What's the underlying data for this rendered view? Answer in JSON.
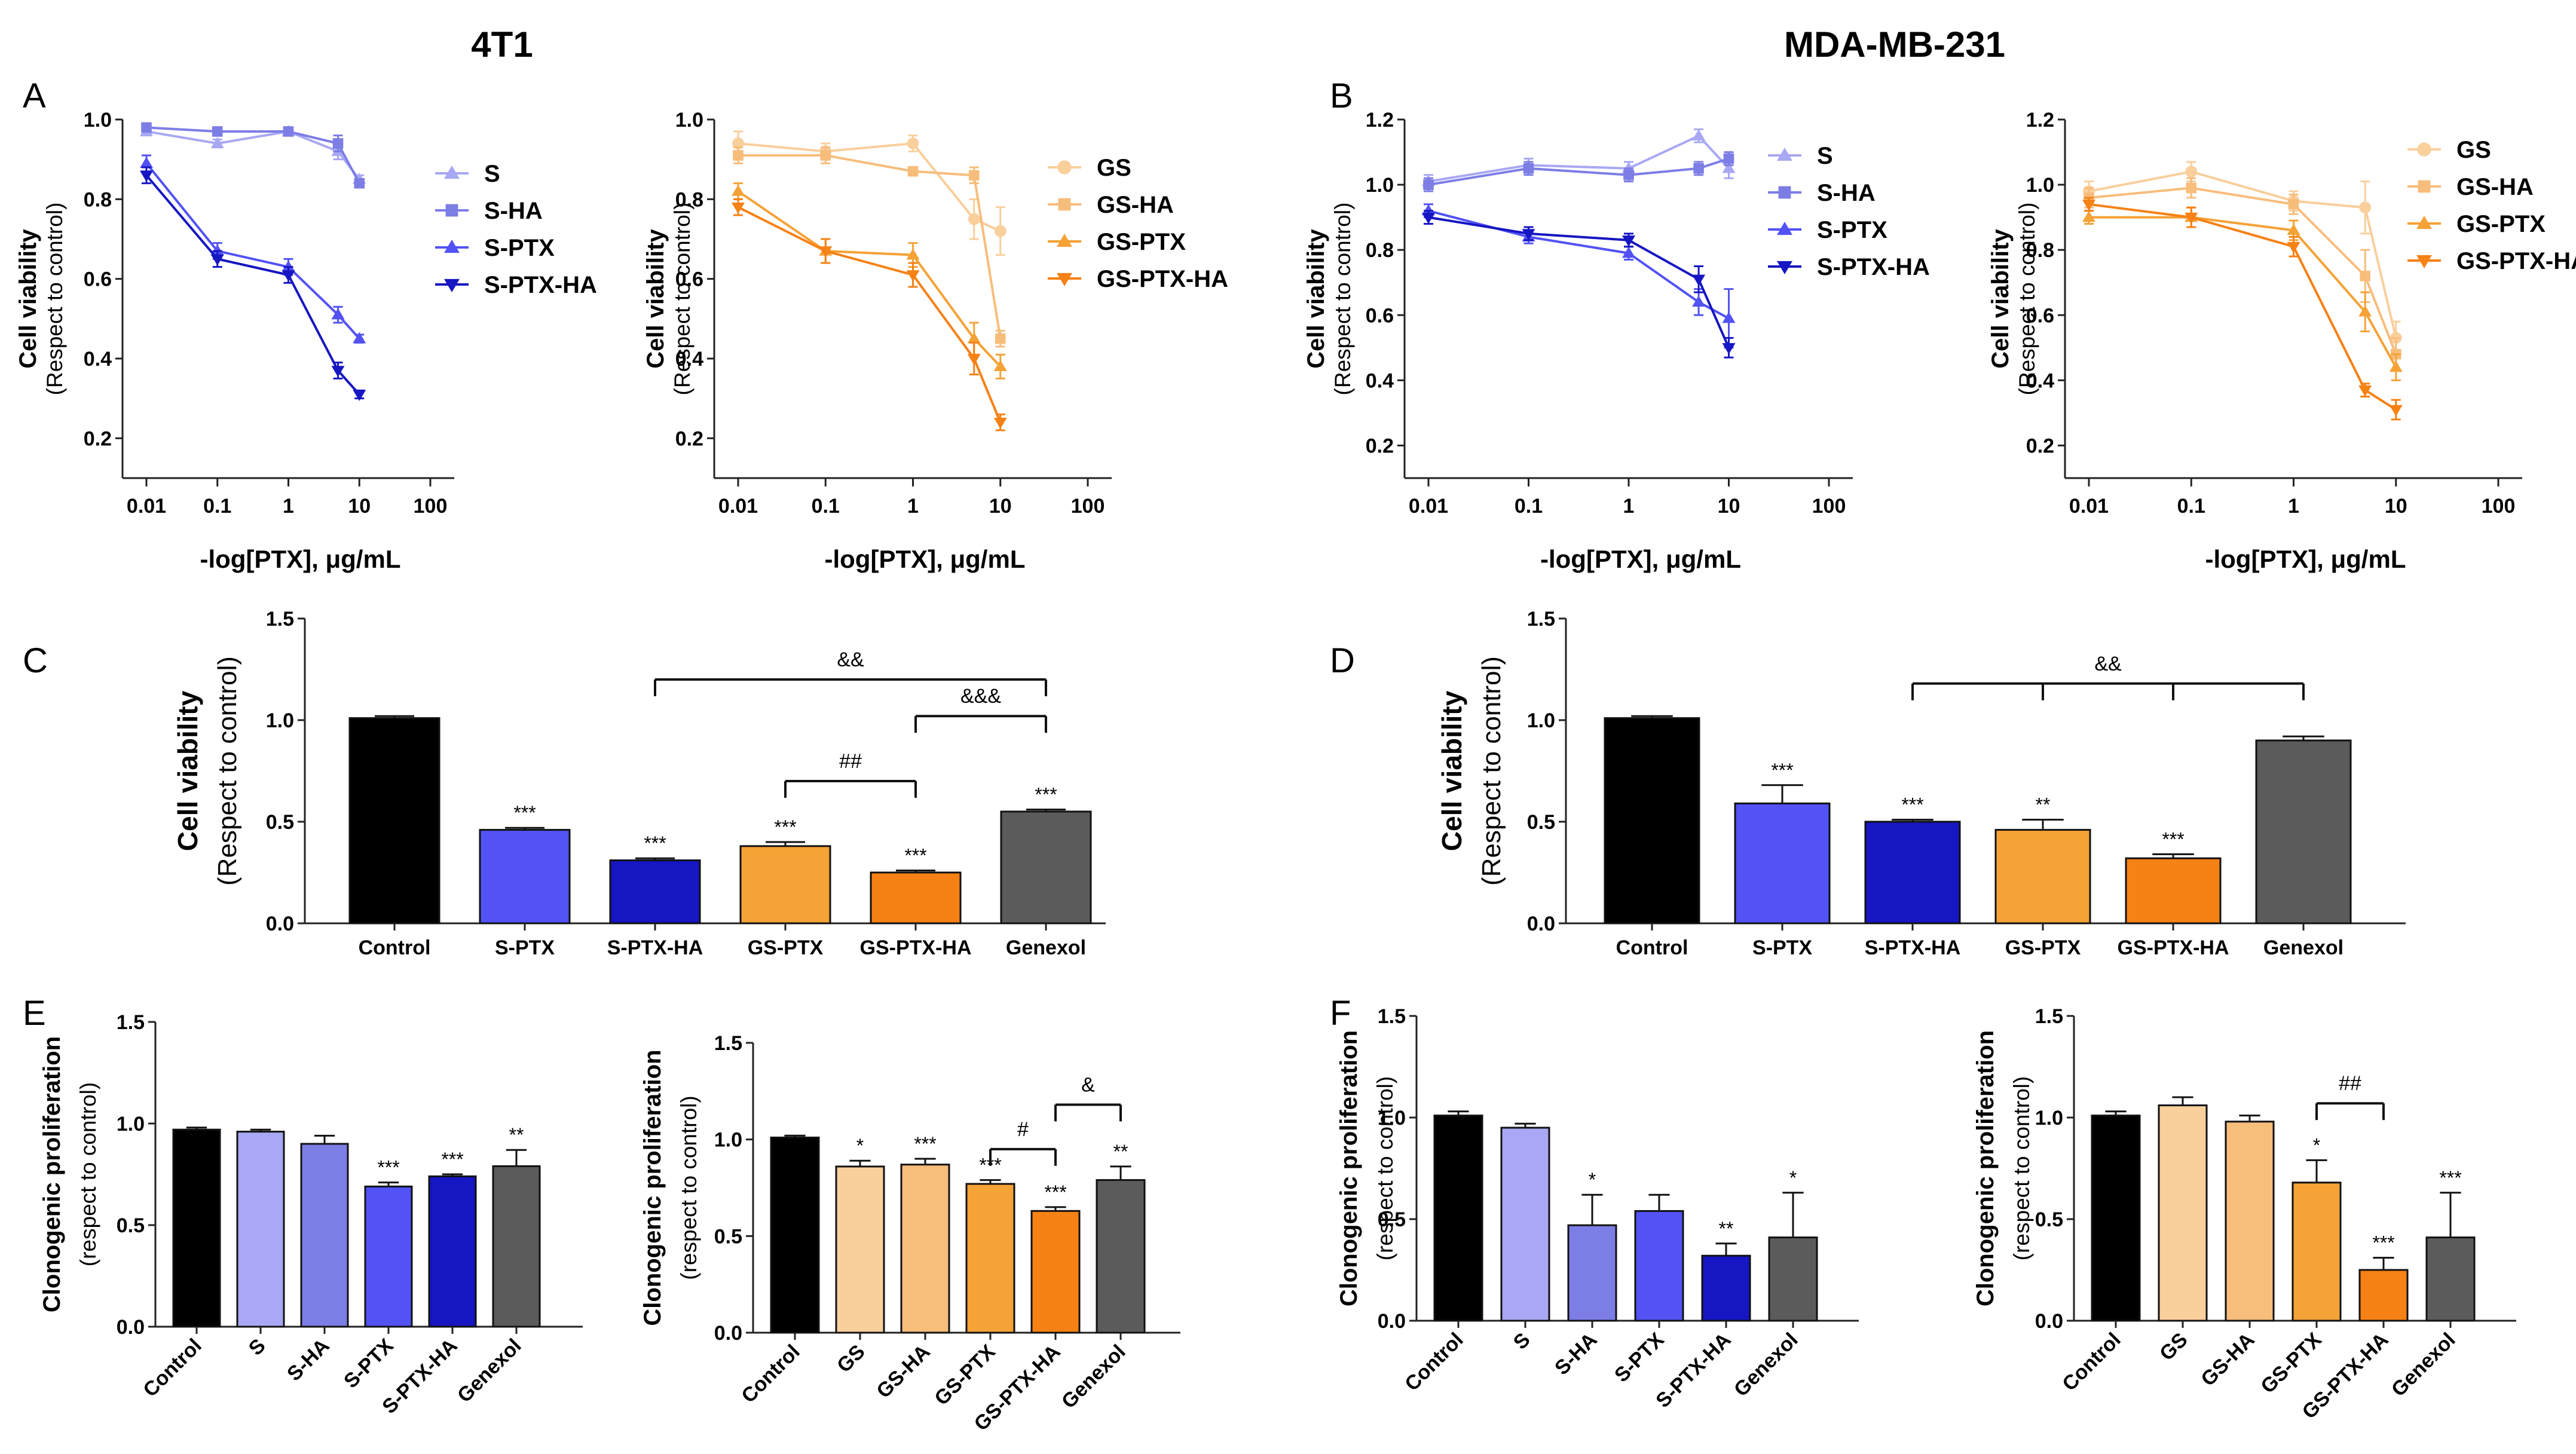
{
  "column_titles": [
    "4T1",
    "MDA-MB-231"
  ],
  "colors": {
    "S": "#a8a8f4",
    "S-HA": "#7d7de6",
    "S-PTX": "#5252f5",
    "S-PTX-HA": "#1616c2",
    "GS": "#f9cf9c",
    "GS-HA": "#f7bd7b",
    "GS-PTX": "#f5a236",
    "GS-PTX-HA": "#f68115",
    "Control": "#000000",
    "Genexol": "#5b5b5b",
    "axis": "#222222"
  },
  "chart_data": [
    {
      "id": "A1",
      "letter": "A",
      "type": "line",
      "xscale": "log",
      "xlabel": "-log[PTX], μg/mL",
      "ylabel": "Cell viability",
      "ylabel_sub": "(Respect to control)",
      "ylim": [
        0.1,
        1.0
      ],
      "yticks": [
        "0.2",
        "0.4",
        "0.6",
        "0.8",
        "1.0"
      ],
      "xticks": [
        "0.01",
        "0.1",
        "1",
        "10",
        "100"
      ],
      "x": [
        0.01,
        0.1,
        1,
        5,
        10
      ],
      "series": [
        {
          "name": "S",
          "marker": "triangle-up",
          "values": [
            0.97,
            0.94,
            0.97,
            0.92,
            0.85
          ],
          "err": [
            0.01,
            0.01,
            0.01,
            0.02,
            0.01
          ]
        },
        {
          "name": "S-HA",
          "marker": "square",
          "values": [
            0.98,
            0.97,
            0.97,
            0.94,
            0.84
          ],
          "err": [
            0.01,
            0.01,
            0.01,
            0.02,
            0.01
          ]
        },
        {
          "name": "S-PTX",
          "marker": "triangle-up",
          "values": [
            0.89,
            0.67,
            0.63,
            0.51,
            0.45
          ],
          "err": [
            0.02,
            0.02,
            0.02,
            0.02,
            0.01
          ]
        },
        {
          "name": "S-PTX-HA",
          "marker": "triangle-down",
          "values": [
            0.86,
            0.65,
            0.61,
            0.37,
            0.31
          ],
          "err": [
            0.02,
            0.02,
            0.02,
            0.02,
            0.01
          ]
        }
      ]
    },
    {
      "id": "A2",
      "type": "line",
      "xscale": "log",
      "xlabel": "-log[PTX], μg/mL",
      "ylabel": "Cell viability",
      "ylabel_sub": "(Respect to control)",
      "ylim": [
        0.1,
        1.0
      ],
      "yticks": [
        "0.2",
        "0.4",
        "0.6",
        "0.8",
        "1.0"
      ],
      "xticks": [
        "0.01",
        "0.1",
        "1",
        "10",
        "100"
      ],
      "x": [
        0.01,
        0.1,
        1,
        5,
        10
      ],
      "series": [
        {
          "name": "GS",
          "marker": "circle",
          "values": [
            0.94,
            0.92,
            0.94,
            0.75,
            0.72
          ],
          "err": [
            0.03,
            0.02,
            0.02,
            0.05,
            0.06
          ]
        },
        {
          "name": "GS-HA",
          "marker": "square",
          "values": [
            0.91,
            0.91,
            0.87,
            0.86,
            0.45
          ],
          "err": [
            0.02,
            0.02,
            0.01,
            0.02,
            0.02
          ]
        },
        {
          "name": "GS-PTX",
          "marker": "triangle-up",
          "values": [
            0.82,
            0.67,
            0.66,
            0.45,
            0.38
          ],
          "err": [
            0.02,
            0.03,
            0.03,
            0.04,
            0.03
          ]
        },
        {
          "name": "GS-PTX-HA",
          "marker": "triangle-down",
          "values": [
            0.78,
            0.67,
            0.61,
            0.4,
            0.24
          ],
          "err": [
            0.02,
            0.03,
            0.03,
            0.04,
            0.02
          ]
        }
      ]
    },
    {
      "id": "B1",
      "letter": "B",
      "type": "line",
      "xscale": "log",
      "xlabel": "-log[PTX], μg/mL",
      "ylabel": "Cell viability",
      "ylabel_sub": "(Respect to control)",
      "ylim": [
        0.1,
        1.2
      ],
      "yticks": [
        "0.2",
        "0.4",
        "0.6",
        "0.8",
        "1.0",
        "1.2"
      ],
      "xticks": [
        "0.01",
        "0.1",
        "1",
        "10",
        "100"
      ],
      "x": [
        0.01,
        0.1,
        1,
        5,
        10
      ],
      "series": [
        {
          "name": "S",
          "marker": "triangle-up",
          "values": [
            1.01,
            1.06,
            1.05,
            1.15,
            1.05
          ],
          "err": [
            0.02,
            0.02,
            0.02,
            0.02,
            0.03
          ]
        },
        {
          "name": "S-HA",
          "marker": "square",
          "values": [
            1.0,
            1.05,
            1.03,
            1.05,
            1.08
          ],
          "err": [
            0.02,
            0.02,
            0.02,
            0.02,
            0.02
          ]
        },
        {
          "name": "S-PTX",
          "marker": "triangle-up",
          "values": [
            0.92,
            0.84,
            0.79,
            0.64,
            0.59
          ],
          "err": [
            0.02,
            0.02,
            0.02,
            0.04,
            0.09
          ]
        },
        {
          "name": "S-PTX-HA",
          "marker": "triangle-down",
          "values": [
            0.9,
            0.85,
            0.83,
            0.71,
            0.5
          ],
          "err": [
            0.02,
            0.02,
            0.02,
            0.04,
            0.03
          ]
        }
      ]
    },
    {
      "id": "B2",
      "type": "line",
      "xscale": "log",
      "xlabel": "-log[PTX], μg/mL",
      "ylabel": "Cell viability",
      "ylabel_sub": "(Respect to control)",
      "ylim": [
        0.1,
        1.2
      ],
      "yticks": [
        "0.2",
        "0.4",
        "0.6",
        "0.8",
        "1.0",
        "1.2"
      ],
      "xticks": [
        "0.01",
        "0.1",
        "1",
        "10",
        "100"
      ],
      "x": [
        0.01,
        0.1,
        1,
        5,
        10
      ],
      "series": [
        {
          "name": "GS",
          "marker": "circle",
          "values": [
            0.98,
            1.04,
            0.95,
            0.93,
            0.53
          ],
          "err": [
            0.03,
            0.03,
            0.03,
            0.08,
            0.05
          ]
        },
        {
          "name": "GS-HA",
          "marker": "square",
          "values": [
            0.96,
            0.99,
            0.94,
            0.72,
            0.48
          ],
          "err": [
            0.03,
            0.03,
            0.03,
            0.08,
            0.05
          ]
        },
        {
          "name": "GS-PTX",
          "marker": "triangle-up",
          "values": [
            0.9,
            0.9,
            0.86,
            0.61,
            0.44
          ],
          "err": [
            0.02,
            0.03,
            0.03,
            0.06,
            0.04
          ]
        },
        {
          "name": "GS-PTX-HA",
          "marker": "triangle-down",
          "values": [
            0.94,
            0.9,
            0.81,
            0.37,
            0.31
          ],
          "err": [
            0.02,
            0.03,
            0.03,
            0.02,
            0.03
          ]
        }
      ]
    },
    {
      "id": "C",
      "letter": "C",
      "type": "bar",
      "ylabel": "Cell viability",
      "ylabel_sub": "(Respect to control)",
      "ylim": [
        0,
        1.5
      ],
      "yticks": [
        "0.0",
        "0.5",
        "1.0",
        "1.5"
      ],
      "categories": [
        "Control",
        "S-PTX",
        "S-PTX-HA",
        "GS-PTX",
        "GS-PTX-HA",
        "Genexol"
      ],
      "values": [
        1.01,
        0.46,
        0.31,
        0.38,
        0.25,
        0.55
      ],
      "err": [
        0.01,
        0.01,
        0.01,
        0.02,
        0.01,
        0.01
      ],
      "sig": [
        "",
        "***",
        "***",
        "***",
        "***",
        "***"
      ],
      "brackets": [
        {
          "from": 2,
          "to": 5,
          "y": 1.2,
          "label": "&&"
        },
        {
          "from": 4,
          "to": 5,
          "y": 1.02,
          "label": "&&&"
        },
        {
          "from": 3,
          "to": 4,
          "y": 0.7,
          "label": "##"
        }
      ]
    },
    {
      "id": "D",
      "letter": "D",
      "type": "bar",
      "ylabel": "Cell viability",
      "ylabel_sub": "(Respect to control)",
      "ylim": [
        0,
        1.5
      ],
      "yticks": [
        "0.0",
        "0.5",
        "1.0",
        "1.5"
      ],
      "categories": [
        "Control",
        "S-PTX",
        "S-PTX-HA",
        "GS-PTX",
        "GS-PTX-HA",
        "Genexol"
      ],
      "values": [
        1.01,
        0.59,
        0.5,
        0.46,
        0.32,
        0.9
      ],
      "err": [
        0.01,
        0.09,
        0.01,
        0.05,
        0.02,
        0.02
      ],
      "sig": [
        "",
        "***",
        "***",
        "**",
        "***",
        ""
      ],
      "brackets": [
        {
          "from": 2,
          "to": 5,
          "y": 1.18,
          "label": "&&",
          "drops": [
            2,
            3,
            4,
            5
          ]
        }
      ]
    },
    {
      "id": "E1",
      "letter": "E",
      "type": "bar",
      "rotate_labels": true,
      "ylabel": "Clonogenic proliferation",
      "ylabel_sub": "(respect to control)",
      "ylim": [
        0,
        1.5
      ],
      "yticks": [
        "0.0",
        "0.5",
        "1.0",
        "1.5"
      ],
      "categories": [
        "Control",
        "S",
        "S-HA",
        "S-PTX",
        "S-PTX-HA",
        "Genexol"
      ],
      "values": [
        0.97,
        0.96,
        0.9,
        0.69,
        0.74,
        0.79
      ],
      "err": [
        0.01,
        0.01,
        0.04,
        0.02,
        0.01,
        0.08
      ],
      "sig": [
        "",
        "",
        "",
        "***",
        "***",
        "**"
      ],
      "brackets": []
    },
    {
      "id": "E2",
      "type": "bar",
      "rotate_labels": true,
      "ylabel": "Clonogenic proliferation",
      "ylabel_sub": "(respect to control)",
      "ylim": [
        0,
        1.5
      ],
      "yticks": [
        "0.0",
        "0.5",
        "1.0",
        "1.5"
      ],
      "categories": [
        "Control",
        "GS",
        "GS-HA",
        "GS-PTX",
        "GS-PTX-HA",
        "Genexol"
      ],
      "values": [
        1.01,
        0.86,
        0.87,
        0.77,
        0.63,
        0.79
      ],
      "err": [
        0.01,
        0.03,
        0.03,
        0.02,
        0.02,
        0.07
      ],
      "sig": [
        "",
        "*",
        "***",
        "***",
        "***",
        "**"
      ],
      "brackets": [
        {
          "from": 3,
          "to": 4,
          "y": 0.95,
          "label": "#"
        },
        {
          "from": 4,
          "to": 5,
          "y": 1.18,
          "label": "&"
        }
      ]
    },
    {
      "id": "F1",
      "letter": "F",
      "type": "bar",
      "rotate_labels": true,
      "ylabel": "Clonogenic proliferation",
      "ylabel_sub": "(respect to control)",
      "ylim": [
        0,
        1.5
      ],
      "yticks": [
        "0.0",
        "0.5",
        "1.0",
        "1.5"
      ],
      "categories": [
        "Control",
        "S",
        "S-HA",
        "S-PTX",
        "S-PTX-HA",
        "Genexol"
      ],
      "values": [
        1.01,
        0.95,
        0.47,
        0.54,
        0.32,
        0.41
      ],
      "err": [
        0.02,
        0.02,
        0.15,
        0.08,
        0.06,
        0.22
      ],
      "sig": [
        "",
        "",
        "*",
        "",
        "**",
        "*"
      ],
      "brackets": []
    },
    {
      "id": "F2",
      "type": "bar",
      "rotate_labels": true,
      "ylabel": "Clonogenic proliferation",
      "ylabel_sub": "(respect to control)",
      "ylim": [
        0,
        1.5
      ],
      "yticks": [
        "0.0",
        "0.5",
        "1.0",
        "1.5"
      ],
      "categories": [
        "Control",
        "GS",
        "GS-HA",
        "GS-PTX",
        "GS-PTX-HA",
        "Genexol"
      ],
      "values": [
        1.01,
        1.06,
        0.98,
        0.68,
        0.25,
        0.41
      ],
      "err": [
        0.02,
        0.04,
        0.03,
        0.11,
        0.06,
        0.22
      ],
      "sig": [
        "",
        "",
        "",
        "*",
        "***",
        "***"
      ],
      "brackets": [
        {
          "from": 3,
          "to": 4,
          "y": 1.07,
          "label": "##"
        }
      ]
    }
  ]
}
